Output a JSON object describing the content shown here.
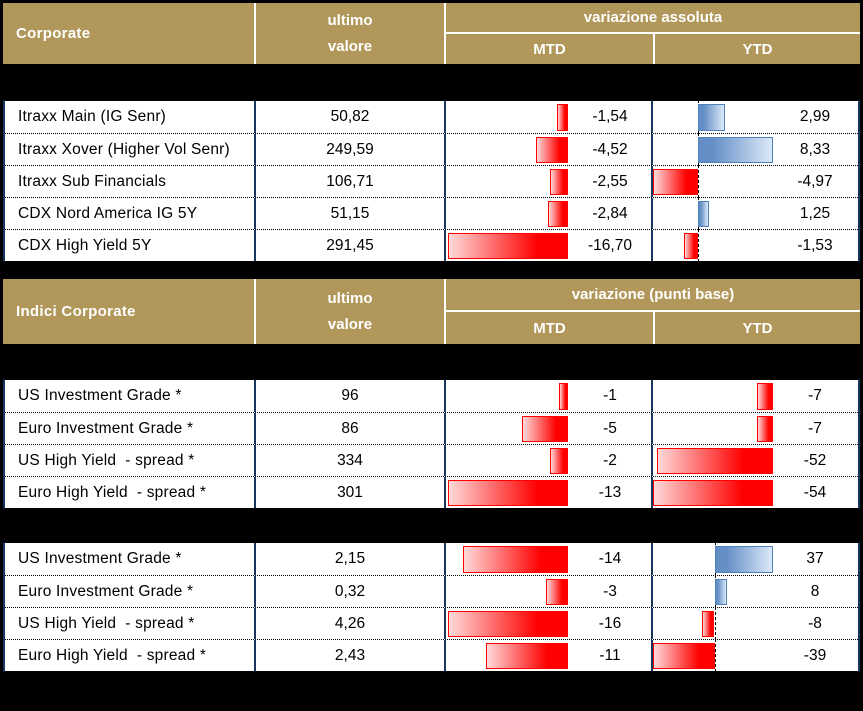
{
  "colors": {
    "page_bg": "#000000",
    "header_bg": "#B1975A",
    "header_text": "#FFFFFF",
    "cell_bg": "#FFFFFF",
    "cell_text": "#000000",
    "divider_navy": "#17375E",
    "bar_red": "#FF0000",
    "bar_red_fade": "#FFD9D9",
    "bar_blue": "#638EC6",
    "bar_blue_border": "#4F81BD",
    "bar_blue_fade": "#DCE9F8"
  },
  "sections": [
    {
      "header": {
        "title": "Corporate",
        "value_col_line1": "ultimo",
        "value_col_line2": "valore",
        "variation_title": "variazione assoluta",
        "mtd_label": "MTD",
        "ytd_label": "YTD"
      },
      "columns": {
        "mtd": {
          "min": -16.7,
          "max": 0,
          "dashed_axis": false
        },
        "ytd": {
          "min": -4.97,
          "max": 8.33,
          "dashed_axis": true
        }
      },
      "rows": [
        {
          "label": "Itraxx Main (IG Senr)",
          "value": "50,82",
          "mtd_text": "-1,54",
          "mtd": -1.54,
          "ytd_text": "2,99",
          "ytd": 2.99
        },
        {
          "label": "Itraxx Xover (Higher Vol Senr)",
          "value": "249,59",
          "mtd_text": "-4,52",
          "mtd": -4.52,
          "ytd_text": "8,33",
          "ytd": 8.33
        },
        {
          "label": "Itraxx Sub Financials",
          "value": "106,71",
          "mtd_text": "-2,55",
          "mtd": -2.55,
          "ytd_text": "-4,97",
          "ytd": -4.97
        },
        {
          "label": "CDX Nord America IG 5Y",
          "value": "51,15",
          "mtd_text": "-2,84",
          "mtd": -2.84,
          "ytd_text": "1,25",
          "ytd": 1.25
        },
        {
          "label": "CDX High Yield 5Y",
          "value": "291,45",
          "mtd_text": "-16,70",
          "mtd": -16.7,
          "ytd_text": "-1,53",
          "ytd": -1.53
        }
      ]
    },
    {
      "header": {
        "title": "Indici Corporate",
        "value_col_line1": "ultimo",
        "value_col_line2": "valore",
        "variation_title": "variazione (punti base)",
        "mtd_label": "MTD",
        "ytd_label": "YTD"
      },
      "columns": {
        "mtd": {
          "min": -13,
          "max": 0,
          "dashed_axis": false
        },
        "ytd": {
          "min": -54,
          "max": 0,
          "dashed_axis": false
        }
      },
      "rows": [
        {
          "label": "US Investment Grade *",
          "value": "96",
          "mtd_text": "-1",
          "mtd": -1,
          "ytd_text": "-7",
          "ytd": -7
        },
        {
          "label": "Euro Investment Grade *",
          "value": "86",
          "mtd_text": "-5",
          "mtd": -5,
          "ytd_text": "-7",
          "ytd": -7
        },
        {
          "label": "US High Yield  - spread *",
          "value": "334",
          "mtd_text": "-2",
          "mtd": -2,
          "ytd_text": "-52",
          "ytd": -52
        },
        {
          "label": "Euro High Yield  - spread *",
          "value": "301",
          "mtd_text": "-13",
          "mtd": -13,
          "ytd_text": "-54",
          "ytd": -54
        }
      ]
    },
    {
      "header": null,
      "columns": {
        "mtd": {
          "min": -16,
          "max": 0,
          "dashed_axis": false
        },
        "ytd": {
          "min": -39,
          "max": 37,
          "dashed_axis": true
        }
      },
      "rows": [
        {
          "label": "US Investment Grade *",
          "value": "2,15",
          "mtd_text": "-14",
          "mtd": -14,
          "ytd_text": "37",
          "ytd": 37
        },
        {
          "label": "Euro Investment Grade *",
          "value": "0,32",
          "mtd_text": "-3",
          "mtd": -3,
          "ytd_text": "8",
          "ytd": 8
        },
        {
          "label": "US High Yield  - spread *",
          "value": "4,26",
          "mtd_text": "-16",
          "mtd": -16,
          "ytd_text": "-8",
          "ytd": -8
        },
        {
          "label": "Euro High Yield  - spread *",
          "value": "2,43",
          "mtd_text": "-11",
          "mtd": -11,
          "ytd_text": "-39",
          "ytd": -39
        }
      ]
    }
  ]
}
